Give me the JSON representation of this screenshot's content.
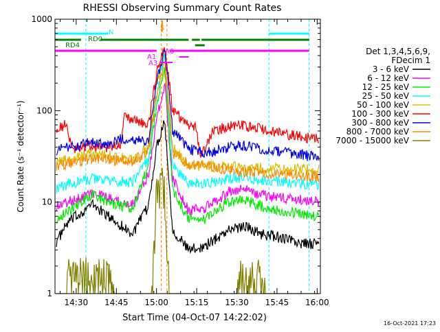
{
  "chart_data": {
    "type": "line",
    "title": "RHESSI Observing Summary Count Rates",
    "xlabel": "Start Time (04-Oct-07 14:22:02)",
    "ylabel": "Count Rate (s⁻¹ detector⁻¹)",
    "ylog": true,
    "ylim": [
      1,
      1000
    ],
    "xlim": [
      14.368,
      16.02
    ],
    "yticks": [
      {
        "value": 1,
        "label": "1"
      },
      {
        "value": 10,
        "label": "10"
      },
      {
        "value": 100,
        "label": "100"
      },
      {
        "value": 1000,
        "label": "1000"
      }
    ],
    "xticks": [
      {
        "value": 14.5,
        "label": "14:30"
      },
      {
        "value": 14.75,
        "label": "14:45"
      },
      {
        "value": 15.0,
        "label": "15:00"
      },
      {
        "value": 15.25,
        "label": "15:15"
      },
      {
        "value": 15.5,
        "label": "15:30"
      },
      {
        "value": 15.75,
        "label": "15:45"
      },
      {
        "value": 16.0,
        "label": "16:00"
      }
    ],
    "legend": {
      "position": "right",
      "header": [
        "Det 1,3,4,5,6,9,",
        "FDecim 1"
      ]
    },
    "series": [
      {
        "name": "3 - 6 keV",
        "color": "#000000",
        "points": [
          [
            14.368,
            3.5
          ],
          [
            14.45,
            6
          ],
          [
            14.6,
            9.5
          ],
          [
            14.7,
            7
          ],
          [
            14.85,
            4.5
          ],
          [
            14.95,
            9
          ],
          [
            15.0,
            40
          ],
          [
            15.05,
            80
          ],
          [
            15.1,
            5
          ],
          [
            15.2,
            3
          ],
          [
            15.3,
            3.3
          ],
          [
            15.45,
            5
          ],
          [
            15.55,
            5.5
          ],
          [
            15.65,
            4.5
          ],
          [
            15.8,
            4
          ],
          [
            15.9,
            3.5
          ],
          [
            15.98,
            3.5
          ]
        ]
      },
      {
        "name": "6 - 12 keV",
        "color": "#ff00ff",
        "points": [
          [
            14.368,
            9
          ],
          [
            14.45,
            10
          ],
          [
            14.6,
            12.5
          ],
          [
            14.7,
            11
          ],
          [
            14.85,
            9.5
          ],
          [
            14.95,
            20
          ],
          [
            15.0,
            80
          ],
          [
            15.05,
            200
          ],
          [
            15.1,
            18
          ],
          [
            15.2,
            8
          ],
          [
            15.3,
            8.5
          ],
          [
            15.45,
            13
          ],
          [
            15.55,
            14
          ],
          [
            15.65,
            12
          ],
          [
            15.8,
            11
          ],
          [
            15.9,
            10.5
          ],
          [
            15.98,
            10
          ]
        ]
      },
      {
        "name": "12 - 25 keV",
        "color": "#00ee00",
        "points": [
          [
            14.368,
            6.5
          ],
          [
            14.45,
            8
          ],
          [
            14.6,
            12
          ],
          [
            14.7,
            10
          ],
          [
            14.85,
            8.5
          ],
          [
            14.95,
            25
          ],
          [
            15.0,
            120
          ],
          [
            15.05,
            300
          ],
          [
            15.1,
            14
          ],
          [
            15.2,
            6.5
          ],
          [
            15.3,
            6.5
          ],
          [
            15.45,
            10
          ],
          [
            15.55,
            10.5
          ],
          [
            15.65,
            9
          ],
          [
            15.8,
            8
          ],
          [
            15.9,
            7.5
          ],
          [
            15.98,
            7
          ]
        ]
      },
      {
        "name": "25 - 50 keV",
        "color": "#00ffff",
        "points": [
          [
            14.368,
            14
          ],
          [
            14.45,
            15.5
          ],
          [
            14.6,
            18
          ],
          [
            14.7,
            17
          ],
          [
            14.85,
            16.5
          ],
          [
            14.95,
            30
          ],
          [
            15.0,
            150
          ],
          [
            15.05,
            400
          ],
          [
            15.1,
            25
          ],
          [
            15.2,
            16
          ],
          [
            15.3,
            16
          ],
          [
            15.45,
            18
          ],
          [
            15.55,
            18.5
          ],
          [
            15.65,
            17.5
          ],
          [
            15.8,
            16.5
          ],
          [
            15.9,
            16
          ],
          [
            15.98,
            15.5
          ]
        ]
      },
      {
        "name": "50 - 100 keV",
        "color": "#ddbb00",
        "points": [
          [
            14.368,
            27
          ],
          [
            14.45,
            29
          ],
          [
            14.6,
            34
          ],
          [
            14.7,
            32
          ],
          [
            14.85,
            29
          ],
          [
            14.95,
            40
          ],
          [
            15.0,
            200
          ],
          [
            15.05,
            450
          ],
          [
            15.1,
            40
          ],
          [
            15.2,
            25
          ],
          [
            15.3,
            25
          ],
          [
            15.45,
            24.5
          ],
          [
            15.55,
            24
          ],
          [
            15.65,
            23.5
          ],
          [
            15.8,
            23
          ],
          [
            15.9,
            23
          ],
          [
            15.98,
            22.5
          ]
        ]
      },
      {
        "name": "100 - 300 keV",
        "color": "#ff0000",
        "points": [
          [
            14.368,
            65
          ],
          [
            14.44,
            70
          ],
          [
            14.47,
            38
          ],
          [
            14.6,
            42
          ],
          [
            14.7,
            40
          ],
          [
            14.78,
            42
          ],
          [
            14.8,
            85
          ],
          [
            14.95,
            70
          ],
          [
            15.0,
            260
          ],
          [
            15.05,
            550
          ],
          [
            15.1,
            100
          ],
          [
            15.2,
            70
          ],
          [
            15.25,
            65
          ],
          [
            15.27,
            30
          ],
          [
            15.35,
            60
          ],
          [
            15.5,
            70
          ],
          [
            15.6,
            67
          ],
          [
            15.7,
            60
          ],
          [
            15.8,
            55
          ],
          [
            15.9,
            52
          ],
          [
            15.98,
            50
          ]
        ]
      },
      {
        "name": "300 - 800 keV",
        "color": "#0000ee",
        "points": [
          [
            14.368,
            37
          ],
          [
            14.45,
            39
          ],
          [
            14.6,
            45
          ],
          [
            14.7,
            43
          ],
          [
            14.8,
            50
          ],
          [
            14.95,
            45
          ],
          [
            15.0,
            200
          ],
          [
            15.05,
            500
          ],
          [
            15.1,
            60
          ],
          [
            15.2,
            38
          ],
          [
            15.3,
            34
          ],
          [
            15.45,
            40
          ],
          [
            15.55,
            42
          ],
          [
            15.65,
            38
          ],
          [
            15.8,
            35
          ],
          [
            15.9,
            33
          ],
          [
            15.98,
            31
          ]
        ]
      },
      {
        "name": "800 - 7000 keV",
        "color": "#ff8800",
        "points": [
          [
            14.368,
            25
          ],
          [
            14.45,
            26
          ],
          [
            14.6,
            30
          ],
          [
            14.7,
            29
          ],
          [
            14.85,
            28
          ],
          [
            14.95,
            35
          ],
          [
            15.0,
            150
          ],
          [
            15.05,
            350
          ],
          [
            15.1,
            35
          ],
          [
            15.2,
            26
          ],
          [
            15.3,
            26
          ],
          [
            15.45,
            22
          ],
          [
            15.55,
            21.5
          ],
          [
            15.65,
            21
          ],
          [
            15.8,
            20
          ],
          [
            15.9,
            19.5
          ],
          [
            15.98,
            19
          ]
        ]
      },
      {
        "name": "7000 - 15000 keV",
        "color": "#808000",
        "points": [
          [
            14.368,
            1
          ],
          [
            14.44,
            1
          ],
          [
            14.45,
            1.9
          ],
          [
            14.6,
            2
          ],
          [
            14.7,
            1.8
          ],
          [
            14.75,
            1
          ],
          [
            14.97,
            1
          ],
          [
            15.0,
            15
          ],
          [
            15.05,
            20
          ],
          [
            15.08,
            1
          ],
          [
            15.5,
            1
          ],
          [
            15.52,
            1.8
          ],
          [
            15.65,
            2
          ],
          [
            15.68,
            1
          ],
          [
            15.98,
            1
          ]
        ]
      }
    ],
    "annotations": {
      "vlines_cyan": [
        14.56,
        15.7,
        15.95
      ],
      "vlines_orange": [
        15.03,
        15.065
      ],
      "text": [
        {
          "label": "N",
          "color": "#00ffff"
        },
        {
          "label": "RD0",
          "color": "#008000"
        },
        {
          "label": "RD4",
          "color": "#008000"
        },
        {
          "label": "S",
          "color": "#ff8800"
        },
        {
          "label": "A1",
          "color": "#ff00ff"
        },
        {
          "label": "A0",
          "color": "#ff00ff"
        },
        {
          "label": "A3",
          "color": "#ff00ff"
        }
      ]
    }
  },
  "footer": {
    "timestamp": "16-Oct-2021 17:23"
  }
}
